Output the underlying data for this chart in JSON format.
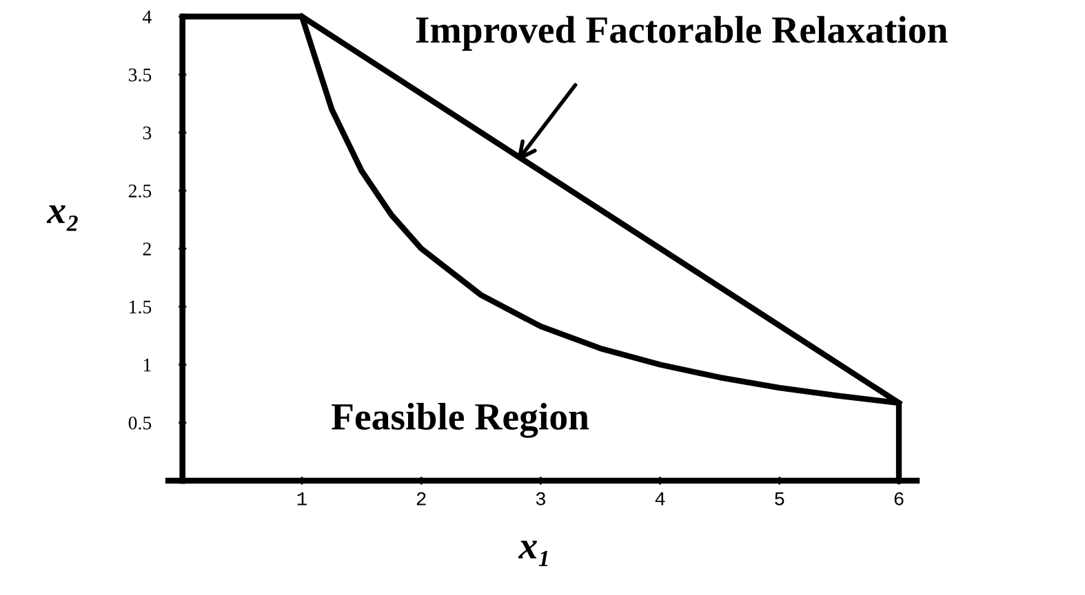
{
  "chart_data": {
    "type": "line",
    "xlabel": "x₁",
    "ylabel": "x₂",
    "series": [
      {
        "color": "#000000",
        "x": [
          0,
          0,
          1,
          1.25,
          1.5,
          1.75,
          2,
          2.5,
          3,
          3.5,
          4,
          4.5,
          5,
          5.5,
          6,
          6
        ],
        "values": [
          0,
          4,
          4,
          3.2,
          2.67,
          2.29,
          2,
          1.6,
          1.33,
          1.14,
          1,
          0.89,
          0.8,
          0.73,
          0.67,
          0
        ]
      },
      {
        "color": "#000000",
        "x": [
          1,
          6
        ],
        "values": [
          4,
          0.67
        ]
      }
    ],
    "xlim": [
      -0.12,
      6.15
    ],
    "ylim": [
      0,
      4
    ],
    "xticks": [
      1,
      2,
      3,
      4,
      5,
      6
    ],
    "yticks": [
      0.5,
      1,
      1.5,
      2,
      2.5,
      3,
      3.5,
      4
    ],
    "annotations": [
      {
        "text": "Improved Factorable Relaxation",
        "x": 2.8,
        "y": 2.75
      },
      "Feasible Region"
    ],
    "marker": "none",
    "line_style": "solid"
  }
}
